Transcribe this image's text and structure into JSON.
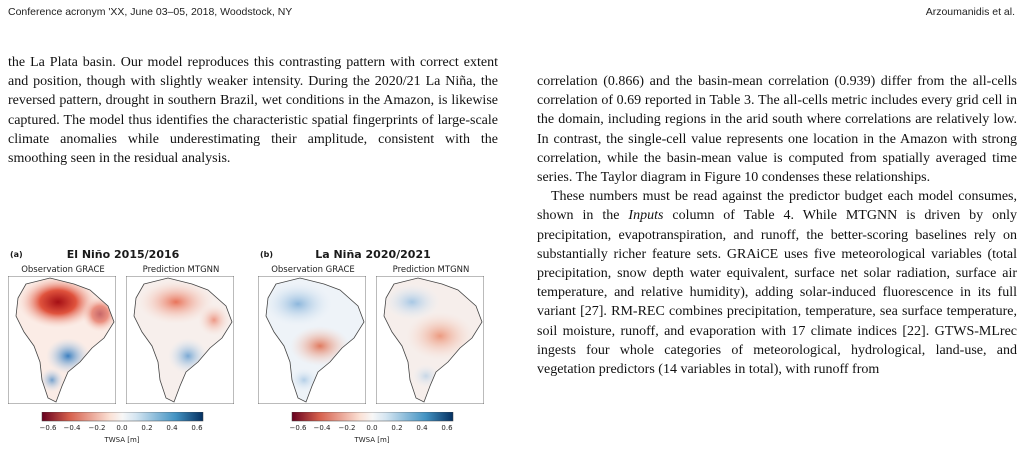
{
  "header": {
    "left": "Conference acronym 'XX, June 03–05, 2018, Woodstock, NY",
    "right": "Arzoumanidis et al."
  },
  "left_column": {
    "paragraph": "the La Plata basin. Our model reproduces this contrasting pattern with correct extent and position, though with slightly weaker intensity. During the 2020/21 La Niña, the reversed pattern, drought in southern Brazil, wet conditions in the Amazon, is likewise captured. The model thus identifies the characteristic spatial fingerprints of large-scale climate anomalies while underestimating their amplitude, consistent with the smoothing seen in the residual analysis."
  },
  "figure": {
    "panel_a": {
      "label": "(a)",
      "title": "El Niño 2015/2016",
      "sub_left": "Observation GRACE",
      "sub_right": "Prediction MTGNN"
    },
    "panel_b": {
      "label": "(b)",
      "title": "La Niña 2020/2021",
      "sub_left": "Observation GRACE",
      "sub_right": "Prediction MTGNN"
    },
    "colorbar": {
      "ticks": [
        "−0.6",
        "−0.4",
        "−0.2",
        "0.0",
        "0.2",
        "0.4",
        "0.6"
      ],
      "label": "TWSA [m]",
      "neg_color": "#b2182b",
      "pos_color": "#2166ac"
    }
  },
  "right_column": {
    "p1": "correlation (0.866) and the basin-mean correlation (0.939) differ from the all-cells correlation of 0.69 reported in Table 3. The all-cells metric includes every grid cell in the domain, including regions in the arid south where correlations are relatively low. In contrast, the single-cell value represents one location in the Amazon with strong correlation, while the basin-mean value is computed from spatially averaged time series. The Taylor diagram in Figure 10 condenses these relationships.",
    "p2_a": "These numbers must be read against the predictor budget each model consumes, shown in the ",
    "p2_italic": "Inputs",
    "p2_b": " column of Table 4. While MTGNN is driven by only precipitation, evapotranspiration, and runoff, the better-scoring baselines rely on substantially richer feature sets. GRAiCE uses five meteorological variables (total precipitation, snow depth water equivalent, surface net solar radiation, surface air temperature, and relative humidity), adding solar-induced fluorescence in its full variant [27]. RM-REC combines precipitation, temperature, sea surface temperature, soil moisture, runoff, and evaporation with 17 climate indices [22]. GTWS-MLrec ingests four whole categories of meteorological, hydrological, land-use, and vegetation predictors (14 variables in total), with runoff from"
  }
}
